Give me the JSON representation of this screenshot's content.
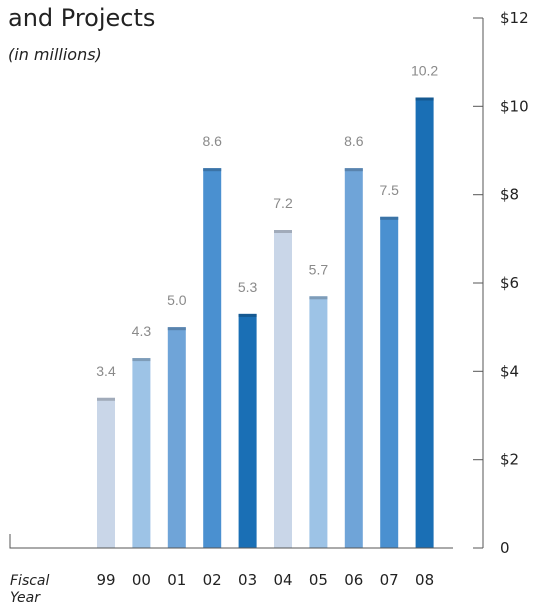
{
  "chart_data": {
    "type": "bar",
    "title": "and Projects",
    "subtitle": "(in millions)",
    "xlabel": "Fiscal Year",
    "xlabel_lines": [
      "Fiscal",
      "Year"
    ],
    "ylabel": "",
    "categories": [
      "99",
      "00",
      "01",
      "02",
      "03",
      "04",
      "05",
      "06",
      "07",
      "08"
    ],
    "values": [
      3.4,
      4.3,
      5.0,
      8.6,
      5.3,
      7.2,
      5.7,
      8.6,
      7.5,
      10.2
    ],
    "value_labels": [
      "3.4",
      "4.3",
      "5.0",
      "8.6",
      "5.3",
      "7.2",
      "5.7",
      "8.6",
      "7.5",
      "10.2"
    ],
    "bar_colors": [
      "#c9d6e8",
      "#9dc3e6",
      "#6fa4d8",
      "#4a90d0",
      "#1a6fb5",
      "#c9d6e8",
      "#9dc3e6",
      "#6fa4d8",
      "#4a90d0",
      "#1a6fb5"
    ],
    "ylim": [
      0,
      12
    ],
    "yticks": [
      0,
      2,
      4,
      6,
      8,
      10,
      12
    ],
    "ytick_labels": [
      "0",
      "$2",
      "$4",
      "$6",
      "$8",
      "$10",
      "$12"
    ],
    "y_axis_side": "right",
    "grid": false,
    "legend": "none"
  }
}
